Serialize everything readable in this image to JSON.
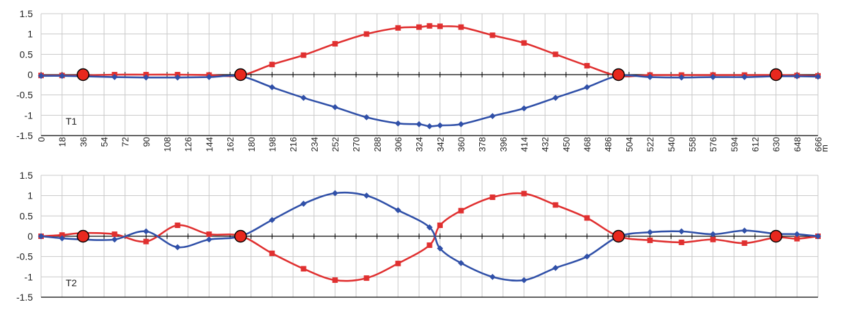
{
  "chart_data": [
    {
      "type": "line",
      "panel_label": "T1",
      "xlabel": "m",
      "ylabel": "",
      "xlim": [
        0,
        666
      ],
      "ylim": [
        -1.5,
        1.5
      ],
      "y_ticks": [
        "1.5",
        "1",
        "0.5",
        "0",
        "-0.5",
        "-1",
        "-1.5"
      ],
      "x_ticks": [
        "0",
        "18",
        "36",
        "54",
        "72",
        "90",
        "108",
        "126",
        "144",
        "162",
        "180",
        "198",
        "216",
        "234",
        "252",
        "270",
        "288",
        "306",
        "324",
        "342",
        "360",
        "378",
        "396",
        "414",
        "432",
        "450",
        "468",
        "486",
        "504",
        "522",
        "540",
        "558",
        "576",
        "594",
        "612",
        "630",
        "648",
        "666"
      ],
      "grid": true,
      "colors": {
        "red": "#e03030",
        "blue": "#3050a8",
        "support": "#e8281e"
      },
      "supports_x": [
        36,
        171,
        495,
        630
      ],
      "series": [
        {
          "color": "red",
          "points": [
            [
              0,
              -0.02
            ],
            [
              18,
              -0.02
            ],
            [
              36,
              -0.02
            ],
            [
              63,
              0.0
            ],
            [
              90,
              0.0
            ],
            [
              117,
              0.0
            ],
            [
              144,
              -0.01
            ],
            [
              171,
              -0.02
            ],
            [
              198,
              0.25
            ],
            [
              225,
              0.48
            ],
            [
              252,
              0.76
            ],
            [
              279,
              1.0
            ],
            [
              306,
              1.15
            ],
            [
              324,
              1.17
            ],
            [
              333,
              1.2
            ],
            [
              342,
              1.19
            ],
            [
              360,
              1.17
            ],
            [
              387,
              0.97
            ],
            [
              414,
              0.78
            ],
            [
              441,
              0.5
            ],
            [
              468,
              0.22
            ],
            [
              495,
              -0.03
            ],
            [
              522,
              -0.01
            ],
            [
              549,
              -0.01
            ],
            [
              576,
              -0.01
            ],
            [
              603,
              -0.01
            ],
            [
              630,
              -0.01
            ],
            [
              648,
              -0.02
            ],
            [
              666,
              -0.03
            ]
          ]
        },
        {
          "color": "blue",
          "points": [
            [
              0,
              -0.03
            ],
            [
              18,
              -0.03
            ],
            [
              36,
              -0.04
            ],
            [
              63,
              -0.06
            ],
            [
              90,
              -0.07
            ],
            [
              117,
              -0.07
            ],
            [
              144,
              -0.06
            ],
            [
              171,
              -0.04
            ],
            [
              198,
              -0.31
            ],
            [
              225,
              -0.57
            ],
            [
              252,
              -0.8
            ],
            [
              279,
              -1.05
            ],
            [
              306,
              -1.2
            ],
            [
              324,
              -1.22
            ],
            [
              333,
              -1.27
            ],
            [
              342,
              -1.25
            ],
            [
              360,
              -1.22
            ],
            [
              387,
              -1.02
            ],
            [
              414,
              -0.83
            ],
            [
              441,
              -0.57
            ],
            [
              468,
              -0.31
            ],
            [
              495,
              -0.03
            ],
            [
              522,
              -0.06
            ],
            [
              549,
              -0.07
            ],
            [
              576,
              -0.06
            ],
            [
              603,
              -0.06
            ],
            [
              630,
              -0.04
            ],
            [
              648,
              -0.04
            ],
            [
              666,
              -0.05
            ]
          ]
        }
      ]
    },
    {
      "type": "line",
      "panel_label": "T2",
      "xlabel": "",
      "ylabel": "",
      "xlim": [
        0,
        666
      ],
      "ylim": [
        -1.5,
        1.5
      ],
      "y_ticks": [
        "1.5",
        "1",
        "0.5",
        "0",
        "-0.5",
        "-1",
        "-1.5"
      ],
      "x_ticks": [],
      "grid": true,
      "colors": {
        "red": "#e03030",
        "blue": "#3050a8",
        "support": "#e8281e"
      },
      "supports_x": [
        36,
        171,
        495,
        630
      ],
      "series": [
        {
          "color": "red",
          "points": [
            [
              0,
              0.0
            ],
            [
              18,
              0.03
            ],
            [
              36,
              0.08
            ],
            [
              63,
              0.05
            ],
            [
              90,
              -0.13
            ],
            [
              117,
              0.27
            ],
            [
              144,
              0.05
            ],
            [
              171,
              0.01
            ],
            [
              198,
              -0.42
            ],
            [
              225,
              -0.8
            ],
            [
              252,
              -1.08
            ],
            [
              279,
              -1.03
            ],
            [
              306,
              -0.67
            ],
            [
              333,
              -0.22
            ],
            [
              342,
              0.27
            ],
            [
              360,
              0.63
            ],
            [
              387,
              0.96
            ],
            [
              414,
              1.05
            ],
            [
              441,
              0.77
            ],
            [
              468,
              0.45
            ],
            [
              495,
              0.0
            ],
            [
              522,
              -0.1
            ],
            [
              549,
              -0.15
            ],
            [
              576,
              -0.08
            ],
            [
              603,
              -0.17
            ],
            [
              630,
              -0.03
            ],
            [
              648,
              -0.06
            ],
            [
              666,
              0.0
            ]
          ]
        },
        {
          "color": "blue",
          "points": [
            [
              0,
              0.0
            ],
            [
              18,
              -0.05
            ],
            [
              36,
              -0.08
            ],
            [
              63,
              -0.08
            ],
            [
              90,
              0.12
            ],
            [
              117,
              -0.27
            ],
            [
              144,
              -0.08
            ],
            [
              171,
              0.0
            ],
            [
              198,
              0.4
            ],
            [
              225,
              0.8
            ],
            [
              252,
              1.06
            ],
            [
              279,
              1.0
            ],
            [
              306,
              0.64
            ],
            [
              333,
              0.22
            ],
            [
              342,
              -0.3
            ],
            [
              360,
              -0.66
            ],
            [
              387,
              -1.0
            ],
            [
              414,
              -1.08
            ],
            [
              441,
              -0.78
            ],
            [
              468,
              -0.5
            ],
            [
              495,
              -0.01
            ],
            [
              522,
              0.1
            ],
            [
              549,
              0.12
            ],
            [
              576,
              0.05
            ],
            [
              603,
              0.14
            ],
            [
              630,
              0.06
            ],
            [
              648,
              0.05
            ],
            [
              666,
              0.0
            ]
          ]
        }
      ]
    }
  ]
}
